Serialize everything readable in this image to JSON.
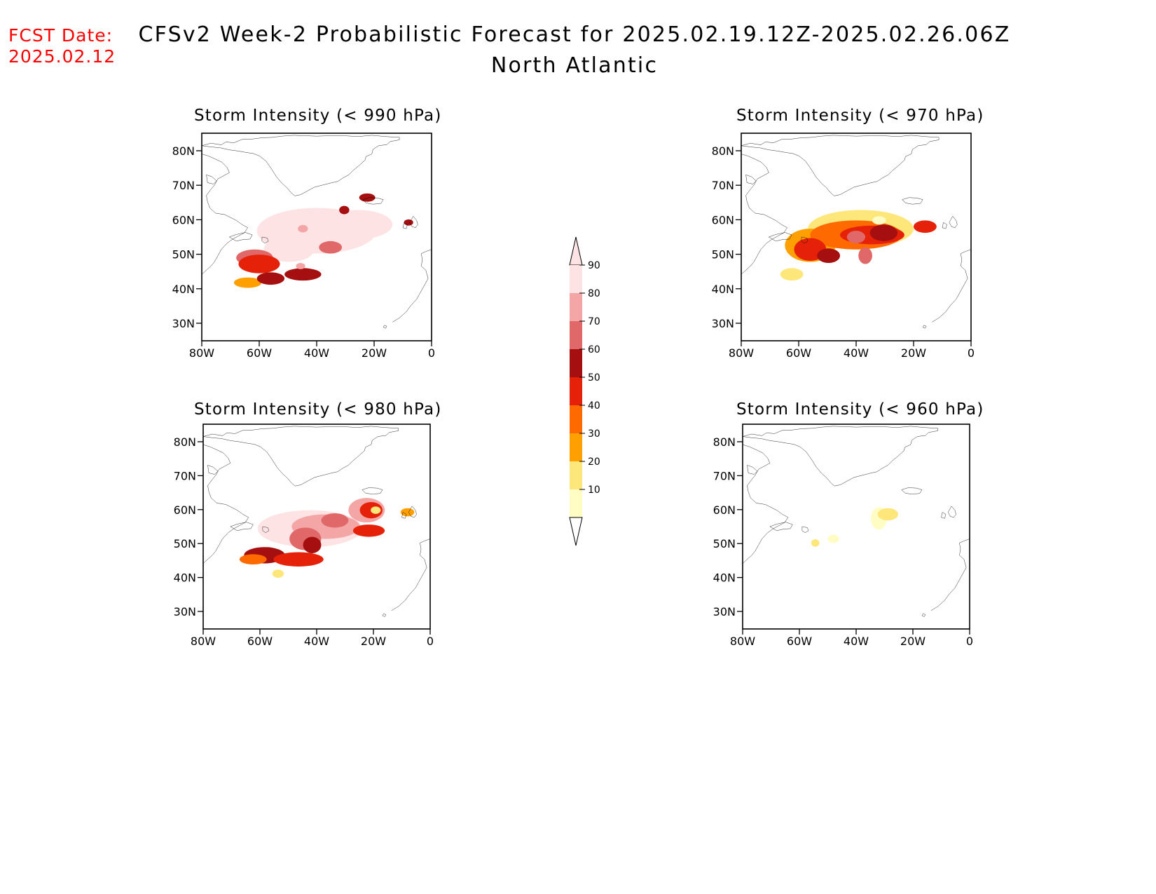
{
  "header": {
    "fcst_label": "FCST Date:",
    "fcst_date": "2025.02.12",
    "title": "CFSv2 Week-2 Probabilistic Forecast for 2025.02.19.12Z-2025.02.26.06Z",
    "region": "North Atlantic"
  },
  "axes": {
    "lat_labels": [
      "80N",
      "70N",
      "60N",
      "50N",
      "40N",
      "30N"
    ],
    "lon_labels": [
      "80W",
      "60W",
      "40W",
      "20W",
      "0"
    ]
  },
  "panels": [
    {
      "id": "p990",
      "title": "Storm Intensity (< 990 hPa)"
    },
    {
      "id": "p970",
      "title": "Storm Intensity (< 970 hPa)"
    },
    {
      "id": "p980",
      "title": "Storm Intensity (< 980 hPa)"
    },
    {
      "id": "p960",
      "title": "Storm Intensity (< 960 hPa)"
    }
  ],
  "colorbar": {
    "labels": [
      "90",
      "80",
      "70",
      "60",
      "50",
      "40",
      "30",
      "20",
      "10"
    ],
    "colors": [
      "#fde3e3",
      "#f4a5a5",
      "#e06868",
      "#a50f0f",
      "#e52209",
      "#ff6a00",
      "#ffa000",
      "#fde67a",
      "#fffcc4"
    ]
  }
}
